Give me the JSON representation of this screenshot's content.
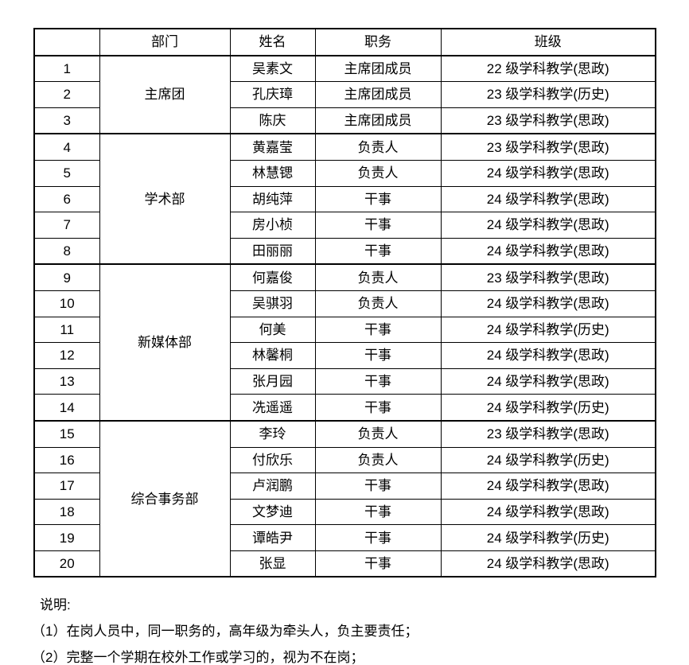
{
  "table": {
    "headers": [
      "",
      "部门",
      "姓名",
      "职务",
      "班级"
    ],
    "groups": [
      {
        "department": "主席团",
        "members": [
          {
            "no": "1",
            "name": "吴素文",
            "position": "主席团成员",
            "class": "22 级学科教学(思政)"
          },
          {
            "no": "2",
            "name": "孔庆璋",
            "position": "主席团成员",
            "class": "23 级学科教学(历史)"
          },
          {
            "no": "3",
            "name": "陈庆",
            "position": "主席团成员",
            "class": "23 级学科教学(思政)"
          }
        ]
      },
      {
        "department": "学术部",
        "members": [
          {
            "no": "4",
            "name": "黄嘉莹",
            "position": "负责人",
            "class": "23 级学科教学(思政)"
          },
          {
            "no": "5",
            "name": "林慧锶",
            "position": "负责人",
            "class": "24 级学科教学(思政)"
          },
          {
            "no": "6",
            "name": "胡纯萍",
            "position": "干事",
            "class": "24 级学科教学(思政)"
          },
          {
            "no": "7",
            "name": "房小桢",
            "position": "干事",
            "class": "24 级学科教学(思政)"
          },
          {
            "no": "8",
            "name": "田丽丽",
            "position": "干事",
            "class": "24 级学科教学(思政)"
          }
        ]
      },
      {
        "department": "新媒体部",
        "members": [
          {
            "no": "9",
            "name": "何嘉俊",
            "position": "负责人",
            "class": "23 级学科教学(思政)"
          },
          {
            "no": "10",
            "name": "吴骐羽",
            "position": "负责人",
            "class": "24 级学科教学(思政)"
          },
          {
            "no": "11",
            "name": "何美",
            "position": "干事",
            "class": "24 级学科教学(历史)"
          },
          {
            "no": "12",
            "name": "林馨桐",
            "position": "干事",
            "class": "24 级学科教学(思政)"
          },
          {
            "no": "13",
            "name": "张月园",
            "position": "干事",
            "class": "24 级学科教学(思政)"
          },
          {
            "no": "14",
            "name": "冼遥遥",
            "position": "干事",
            "class": "24 级学科教学(历史)"
          }
        ]
      },
      {
        "department": "综合事务部",
        "members": [
          {
            "no": "15",
            "name": "李玲",
            "position": "负责人",
            "class": "23 级学科教学(思政)"
          },
          {
            "no": "16",
            "name": "付欣乐",
            "position": "负责人",
            "class": "24 级学科教学(历史)"
          },
          {
            "no": "17",
            "name": "卢润鹏",
            "position": "干事",
            "class": "24 级学科教学(思政)"
          },
          {
            "no": "18",
            "name": "文梦迪",
            "position": "干事",
            "class": "24 级学科教学(思政)"
          },
          {
            "no": "19",
            "name": "谭皓尹",
            "position": "干事",
            "class": "24 级学科教学(历史)"
          },
          {
            "no": "20",
            "name": "张显",
            "position": "干事",
            "class": "24 级学科教学(思政)"
          }
        ]
      }
    ]
  },
  "notes": {
    "title": "说明:",
    "items": [
      "（1）在岗人员中，同一职务的，高年级为牵头人，负主要责任；",
      "（2）完整一个学期在校外工作或学习的，视为不在岗；"
    ]
  }
}
